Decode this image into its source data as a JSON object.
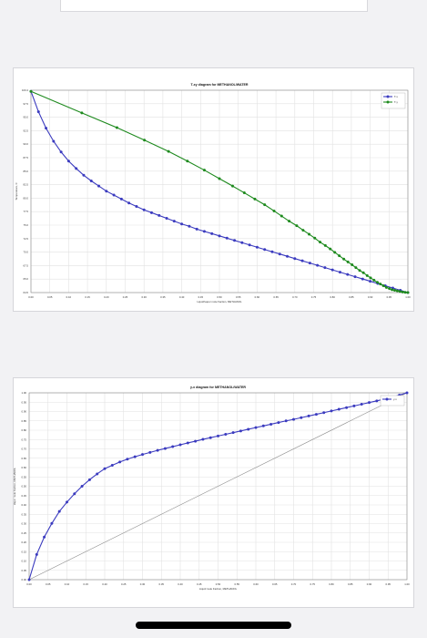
{
  "chart_data": [
    {
      "type": "line",
      "title": "T-xy diagram for METHANOL/WATER",
      "xlabel": "Liquid/vapor mole fraction, METHANOL",
      "ylabel": "Temperature, C",
      "xlim": [
        0,
        1
      ],
      "ylim": [
        64.5,
        100.2
      ],
      "xticks": [
        "0.00",
        "0.05",
        "0.10",
        "0.15",
        "0.20",
        "0.25",
        "0.30",
        "0.35",
        "0.40",
        "0.45",
        "0.50",
        "0.55",
        "0.60",
        "0.65",
        "0.70",
        "0.75",
        "0.80",
        "0.85",
        "0.90",
        "0.95",
        "1.00"
      ],
      "yticks": [
        "100.2",
        "97.5",
        "95.0",
        "92.5",
        "90.0",
        "87.5",
        "85.0",
        "82.5",
        "80.0",
        "77.5",
        "75.0",
        "72.5",
        "70.0",
        "67.5",
        "65.0",
        "64.5"
      ],
      "grid": true,
      "legend": "top-right",
      "series": [
        {
          "name": "T-x",
          "color": "#3b3bbf",
          "x": [
            0,
            0.02,
            0.04,
            0.06,
            0.08,
            0.1,
            0.12,
            0.14,
            0.16,
            0.18,
            0.2,
            0.22,
            0.24,
            0.26,
            0.28,
            0.3,
            0.32,
            0.34,
            0.36,
            0.38,
            0.4,
            0.42,
            0.44,
            0.46,
            0.48,
            0.5,
            0.52,
            0.54,
            0.56,
            0.58,
            0.6,
            0.62,
            0.64,
            0.66,
            0.68,
            0.7,
            0.72,
            0.74,
            0.76,
            0.78,
            0.8,
            0.82,
            0.84,
            0.86,
            0.88,
            0.9,
            0.92,
            0.94,
            0.96,
            0.98,
            1.0
          ],
          "y": [
            100.0,
            96.4,
            93.5,
            91.2,
            89.3,
            87.7,
            86.4,
            85.2,
            84.2,
            83.3,
            82.4,
            81.7,
            81.0,
            80.3,
            79.7,
            79.1,
            78.6,
            78.1,
            77.6,
            77.1,
            76.6,
            76.2,
            75.7,
            75.3,
            74.9,
            74.5,
            74.1,
            73.7,
            73.3,
            72.9,
            72.5,
            72.1,
            71.7,
            71.3,
            70.9,
            70.5,
            70.1,
            69.7,
            69.3,
            68.9,
            68.5,
            68.1,
            67.7,
            67.3,
            66.9,
            66.5,
            66.1,
            65.7,
            65.3,
            64.9,
            64.5
          ]
        },
        {
          "name": "T-y",
          "color": "#1e8a1e",
          "x": [
            0,
            0.135,
            0.228,
            0.301,
            0.365,
            0.415,
            0.46,
            0.5,
            0.535,
            0.566,
            0.594,
            0.62,
            0.645,
            0.665,
            0.685,
            0.705,
            0.722,
            0.738,
            0.753,
            0.767,
            0.781,
            0.794,
            0.806,
            0.818,
            0.83,
            0.841,
            0.852,
            0.862,
            0.872,
            0.882,
            0.892,
            0.901,
            0.91,
            0.919,
            0.927,
            0.935,
            0.943,
            0.951,
            0.958,
            0.965,
            0.972,
            0.979,
            0.986,
            0.993,
            1.0
          ],
          "y": [
            100.0,
            96.2,
            93.6,
            91.4,
            89.4,
            87.7,
            86.1,
            84.6,
            83.3,
            82.1,
            81.0,
            80.0,
            78.9,
            78.0,
            77.1,
            76.3,
            75.5,
            74.8,
            74.1,
            73.4,
            72.8,
            72.2,
            71.6,
            71.0,
            70.4,
            69.9,
            69.4,
            68.9,
            68.4,
            68.0,
            67.5,
            67.1,
            66.7,
            66.3,
            66.0,
            65.7,
            65.4,
            65.2,
            65.0,
            64.9,
            64.8,
            64.7,
            64.6,
            64.55,
            64.5
          ]
        }
      ]
    },
    {
      "type": "line",
      "title": "y-x diagram for METHANOL/WATER",
      "xlabel": "Liquid mole fraction, METHANOL",
      "ylabel": "Vapor mole fraction, METHANOL",
      "xlim": [
        0,
        1
      ],
      "ylim": [
        0,
        1
      ],
      "xticks": [
        "0.00",
        "0.05",
        "0.10",
        "0.15",
        "0.20",
        "0.25",
        "0.30",
        "0.35",
        "0.40",
        "0.45",
        "0.50",
        "0.55",
        "0.60",
        "0.65",
        "0.70",
        "0.75",
        "0.80",
        "0.85",
        "0.90",
        "0.95",
        "1.00"
      ],
      "yticks": [
        "1.00",
        "0.95",
        "0.90",
        "0.85",
        "0.80",
        "0.75",
        "0.70",
        "0.65",
        "0.60",
        "0.55",
        "0.50",
        "0.45",
        "0.40",
        "0.35",
        "0.30",
        "0.25",
        "0.20",
        "0.15",
        "0.10",
        "0.05",
        "0.00"
      ],
      "grid": true,
      "legend": "top-right",
      "series": [
        {
          "name": "y-x",
          "color": "#3b3bbf",
          "x": [
            0,
            0.02,
            0.04,
            0.06,
            0.08,
            0.1,
            0.12,
            0.14,
            0.16,
            0.18,
            0.2,
            0.22,
            0.24,
            0.26,
            0.28,
            0.3,
            0.32,
            0.34,
            0.36,
            0.38,
            0.4,
            0.42,
            0.44,
            0.46,
            0.48,
            0.5,
            0.52,
            0.54,
            0.56,
            0.58,
            0.6,
            0.62,
            0.64,
            0.66,
            0.68,
            0.7,
            0.72,
            0.74,
            0.76,
            0.78,
            0.8,
            0.82,
            0.84,
            0.86,
            0.88,
            0.9,
            0.92,
            0.94,
            0.96,
            0.98,
            1.0
          ],
          "y": [
            0,
            0.135,
            0.228,
            0.301,
            0.365,
            0.415,
            0.46,
            0.5,
            0.535,
            0.566,
            0.594,
            0.612,
            0.63,
            0.645,
            0.658,
            0.67,
            0.681,
            0.692,
            0.702,
            0.712,
            0.722,
            0.732,
            0.741,
            0.751,
            0.76,
            0.769,
            0.778,
            0.787,
            0.796,
            0.805,
            0.814,
            0.823,
            0.832,
            0.841,
            0.85,
            0.858,
            0.867,
            0.876,
            0.885,
            0.894,
            0.903,
            0.912,
            0.921,
            0.93,
            0.939,
            0.948,
            0.957,
            0.966,
            0.976,
            0.988,
            1.0
          ]
        }
      ]
    }
  ]
}
